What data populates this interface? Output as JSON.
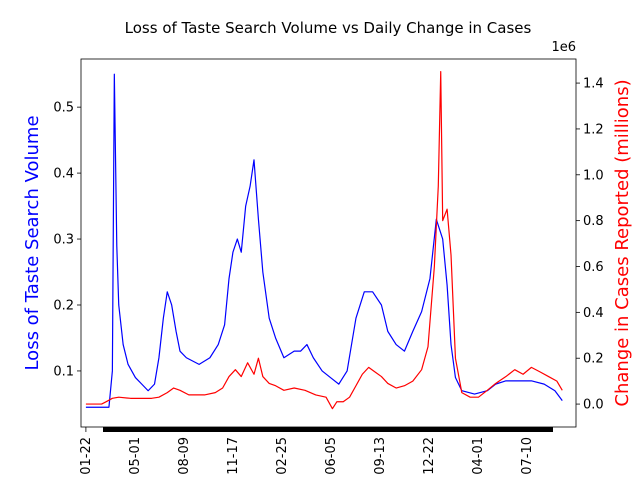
{
  "chart_data": {
    "type": "line",
    "title": "Loss of Taste Search Volume vs Daily Change in Cases",
    "ylabel": "Loss of Taste Search Volume",
    "y2label": "Change in Cases Reported (millions)",
    "y2_offset_label": "1e6",
    "xlim": [
      -10,
      1000
    ],
    "xticks": [
      {
        "value": 0,
        "label": "01-22"
      },
      {
        "value": 100,
        "label": "05-01"
      },
      {
        "value": 200,
        "label": "08-09"
      },
      {
        "value": 300,
        "label": "11-17"
      },
      {
        "value": 400,
        "label": "02-25"
      },
      {
        "value": 500,
        "label": "06-05"
      },
      {
        "value": 600,
        "label": "09-13"
      },
      {
        "value": 700,
        "label": "12-22"
      },
      {
        "value": 800,
        "label": "04-01"
      },
      {
        "value": 900,
        "label": "07-10"
      }
    ],
    "ylim": [
      0.015,
      0.573
    ],
    "yticks": [
      0.1,
      0.2,
      0.3,
      0.4,
      0.5
    ],
    "y2lim": [
      -0.1,
      1.505
    ],
    "y2ticks": [
      {
        "value": 0,
        "label": "0.0"
      },
      0.2,
      0.4,
      0.6,
      0.8,
      {
        "value": 1,
        "label": "1.0"
      },
      1.2,
      1.4
    ],
    "series": [
      {
        "name": "Loss of Taste Search Volume",
        "color": "#0000ff",
        "x": [
          0,
          47,
          54,
          58,
          63,
          67,
          76,
          86,
          101,
          114,
          127,
          140,
          149,
          158,
          166,
          175,
          184,
          192,
          205,
          231,
          253,
          270,
          283,
          292,
          300,
          309,
          317,
          326,
          335,
          343,
          352,
          361,
          374,
          387,
          404,
          425,
          438,
          451,
          464,
          482,
          499,
          516,
          533,
          551,
          568,
          585,
          603,
          616,
          633,
          650,
          667,
          685,
          702,
          715,
          728,
          737,
          745,
          754,
          767,
          793,
          819,
          836,
          857,
          883,
          909,
          935,
          957,
          972
        ],
        "values": [
          0.045,
          0.045,
          0.1,
          0.55,
          0.29,
          0.2,
          0.14,
          0.11,
          0.09,
          0.08,
          0.07,
          0.08,
          0.12,
          0.18,
          0.22,
          0.2,
          0.16,
          0.13,
          0.12,
          0.11,
          0.12,
          0.14,
          0.17,
          0.24,
          0.28,
          0.3,
          0.28,
          0.35,
          0.38,
          0.42,
          0.33,
          0.25,
          0.18,
          0.15,
          0.12,
          0.13,
          0.13,
          0.14,
          0.12,
          0.1,
          0.09,
          0.08,
          0.1,
          0.18,
          0.22,
          0.22,
          0.2,
          0.16,
          0.14,
          0.13,
          0.16,
          0.19,
          0.24,
          0.33,
          0.3,
          0.23,
          0.14,
          0.09,
          0.07,
          0.065,
          0.07,
          0.08,
          0.085,
          0.085,
          0.085,
          0.08,
          0.07,
          0.055
        ]
      },
      {
        "name": "Change in Cases Reported",
        "color": "#ff0000",
        "axis": "y2",
        "x": [
          0,
          32,
          41,
          54,
          67,
          91,
          134,
          149,
          166,
          179,
          192,
          210,
          242,
          264,
          279,
          292,
          305,
          317,
          330,
          343,
          352,
          361,
          374,
          387,
          404,
          425,
          447,
          469,
          490,
          503,
          512,
          525,
          538,
          551,
          564,
          577,
          590,
          603,
          616,
          633,
          650,
          667,
          685,
          698,
          711,
          719,
          724,
          728,
          737,
          745,
          754,
          767,
          784,
          801,
          819,
          836,
          857,
          875,
          892,
          909,
          927,
          944,
          961,
          972
        ],
        "values": [
          0.0,
          0.0,
          0.01,
          0.025,
          0.03,
          0.025,
          0.025,
          0.03,
          0.05,
          0.07,
          0.06,
          0.04,
          0.04,
          0.05,
          0.07,
          0.12,
          0.15,
          0.12,
          0.18,
          0.13,
          0.2,
          0.12,
          0.09,
          0.08,
          0.06,
          0.07,
          0.06,
          0.04,
          0.03,
          -0.02,
          0.01,
          0.01,
          0.03,
          0.08,
          0.13,
          0.16,
          0.14,
          0.12,
          0.09,
          0.07,
          0.08,
          0.1,
          0.15,
          0.25,
          0.6,
          0.95,
          1.45,
          0.8,
          0.85,
          0.65,
          0.2,
          0.05,
          0.03,
          0.03,
          0.06,
          0.09,
          0.12,
          0.15,
          0.13,
          0.16,
          0.14,
          0.12,
          0.1,
          0.06
        ]
      }
    ]
  }
}
